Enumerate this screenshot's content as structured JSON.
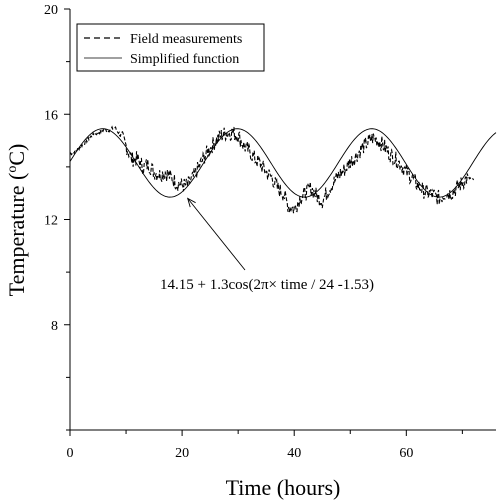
{
  "chart_data": {
    "type": "line",
    "xlabel": "Time (hours)",
    "ylabel_main": "Temperature (",
    "ylabel_sup": "o",
    "ylabel_tail": "C)",
    "xlim": [
      0,
      76
    ],
    "ylim": [
      4,
      20
    ],
    "xticks": [
      0,
      20,
      40,
      60
    ],
    "yticks": [
      8,
      12,
      16,
      20
    ],
    "grid": false,
    "legend_position": "top-left",
    "annotation": "14.15 + 1.3cos(2π× time / 24 -1.53)",
    "annotation_target": {
      "x": 21,
      "y": 12.8
    },
    "series": [
      {
        "name": "Field measurements",
        "style": "dashed",
        "x": [
          0,
          1,
          2,
          3,
          4,
          5,
          6,
          7,
          8,
          9,
          10,
          11,
          12,
          13,
          14,
          15,
          16,
          17,
          18,
          19,
          20,
          21,
          22,
          23,
          24,
          25,
          26,
          27,
          28,
          29,
          30,
          31,
          32,
          33,
          34,
          35,
          36,
          37,
          38,
          39,
          40,
          41,
          42,
          43,
          44,
          45,
          46,
          47,
          48,
          49,
          50,
          51,
          52,
          53,
          54,
          55,
          56,
          57,
          58,
          59,
          60,
          61,
          62,
          63,
          64,
          65,
          66,
          67,
          68,
          69,
          70,
          71,
          72
        ],
        "y": [
          14.5,
          14.6,
          14.8,
          15.0,
          15.2,
          15.3,
          15.4,
          15.4,
          15.5,
          15.2,
          14.8,
          14.3,
          14.3,
          14.0,
          14.1,
          13.8,
          13.7,
          13.8,
          13.6,
          13.4,
          13.3,
          13.3,
          13.6,
          14.0,
          14.4,
          14.7,
          15.0,
          15.2,
          15.3,
          15.3,
          15.2,
          14.8,
          14.6,
          14.3,
          14.1,
          13.8,
          13.6,
          13.2,
          13.0,
          12.5,
          12.4,
          12.8,
          13.0,
          13.2,
          12.9,
          12.7,
          13.1,
          13.4,
          13.7,
          13.9,
          14.2,
          14.4,
          14.7,
          14.9,
          15.1,
          15.0,
          14.8,
          14.5,
          14.3,
          14.1,
          13.8,
          13.6,
          13.3,
          13.1,
          13.0,
          12.9,
          12.8,
          13.0,
          13.0,
          13.2,
          13.4,
          13.6,
          13.5
        ]
      },
      {
        "name": "Simplified function",
        "style": "solid",
        "formula": {
          "mean": 14.15,
          "amplitude": 1.3,
          "period": 24,
          "phase": 1.53
        },
        "x_range": [
          0,
          76
        ]
      }
    ]
  }
}
